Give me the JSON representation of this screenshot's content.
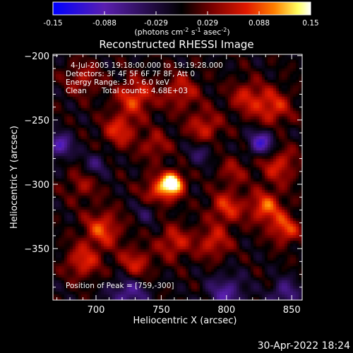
{
  "chart_data": {
    "type": "heatmap",
    "title": "Reconstructed RHESSI Image",
    "xlabel": "Heliocentric X (arcsec)",
    "ylabel": "Heliocentric Y (arcsec)",
    "xlim": [
      667,
      858
    ],
    "ylim": [
      -390,
      -199
    ],
    "x_ticks": [
      700,
      750,
      800,
      850
    ],
    "y_ticks": [
      -200,
      -250,
      -300,
      -350
    ],
    "colorbar": {
      "min": -0.15,
      "max": 0.15,
      "ticks": [
        "-0.15",
        "-0.088",
        "-0.029",
        "0.029",
        "0.088",
        "0.15"
      ],
      "unit_prefix": "(photons cm",
      "unit_exp1": "-2",
      "unit_mid1": " s",
      "unit_exp2": "-1",
      "unit_mid2": " asec",
      "unit_exp3": "-2",
      "unit_suffix": ")",
      "colors": [
        "#0000ff",
        "#5a1fb0",
        "#000000",
        "#7a0000",
        "#e01800",
        "#ff8000",
        "#ffff60",
        "#ffffff"
      ]
    },
    "annotations": {
      "time_range": "4-Jul-2005 19:18:00.000 to 19:19:28.000",
      "detectors": "Detectors: 3F 4F 5F 6F 7F 8F, Att 0",
      "energy": "Energy Range: 3.0 - 6.0 keV",
      "clean": "Clean",
      "counts": "Total counts: 4.68E+03",
      "peak": "Position of Peak = [759,-300]"
    },
    "peak": {
      "x": 759,
      "y": -300,
      "value": 0.15
    },
    "sources": [
      {
        "x": 759,
        "y": -299,
        "amp": 1.0,
        "sigma": 6
      },
      {
        "x": 748,
        "y": -306,
        "amp": 0.55,
        "sigma": 9
      },
      {
        "x": 730,
        "y": -232,
        "amp": 0.55,
        "sigma": 10
      },
      {
        "x": 718,
        "y": -258,
        "amp": 0.5,
        "sigma": 9
      },
      {
        "x": 765,
        "y": -228,
        "amp": 0.4,
        "sigma": 10
      },
      {
        "x": 783,
        "y": -256,
        "amp": 0.45,
        "sigma": 9
      },
      {
        "x": 835,
        "y": -240,
        "amp": 0.5,
        "sigma": 10
      },
      {
        "x": 815,
        "y": -232,
        "amp": 0.4,
        "sigma": 9
      },
      {
        "x": 840,
        "y": -285,
        "amp": 0.45,
        "sigma": 10
      },
      {
        "x": 830,
        "y": -318,
        "amp": 0.6,
        "sigma": 9
      },
      {
        "x": 845,
        "y": -335,
        "amp": 0.55,
        "sigma": 8
      },
      {
        "x": 800,
        "y": -318,
        "amp": 0.5,
        "sigma": 9
      },
      {
        "x": 790,
        "y": -345,
        "amp": 0.45,
        "sigma": 9
      },
      {
        "x": 705,
        "y": -335,
        "amp": 0.55,
        "sigma": 10
      },
      {
        "x": 690,
        "y": -360,
        "amp": 0.5,
        "sigma": 9
      },
      {
        "x": 730,
        "y": -362,
        "amp": 0.45,
        "sigma": 9
      },
      {
        "x": 760,
        "y": -345,
        "amp": 0.45,
        "sigma": 9
      },
      {
        "x": 690,
        "y": -218,
        "amp": 0.35,
        "sigma": 9
      },
      {
        "x": 745,
        "y": -270,
        "amp": 0.35,
        "sigma": 8
      },
      {
        "x": 690,
        "y": -300,
        "amp": 0.3,
        "sigma": 9
      },
      {
        "x": 805,
        "y": -290,
        "amp": 0.3,
        "sigma": 8
      },
      {
        "x": 672,
        "y": -270,
        "amp": -0.6,
        "sigma": 7
      },
      {
        "x": 827,
        "y": -268,
        "amp": -0.7,
        "sigma": 7
      },
      {
        "x": 725,
        "y": -385,
        "amp": -0.5,
        "sigma": 10
      },
      {
        "x": 800,
        "y": -385,
        "amp": -0.5,
        "sigma": 10
      },
      {
        "x": 845,
        "y": -385,
        "amp": -0.45,
        "sigma": 8
      },
      {
        "x": 740,
        "y": -320,
        "amp": -0.3,
        "sigma": 7
      },
      {
        "x": 780,
        "y": -275,
        "amp": -0.3,
        "sigma": 7
      },
      {
        "x": 700,
        "y": -285,
        "amp": -0.35,
        "sigma": 7
      }
    ]
  },
  "footer": {
    "datetime": "30-Apr-2022 18:24"
  }
}
